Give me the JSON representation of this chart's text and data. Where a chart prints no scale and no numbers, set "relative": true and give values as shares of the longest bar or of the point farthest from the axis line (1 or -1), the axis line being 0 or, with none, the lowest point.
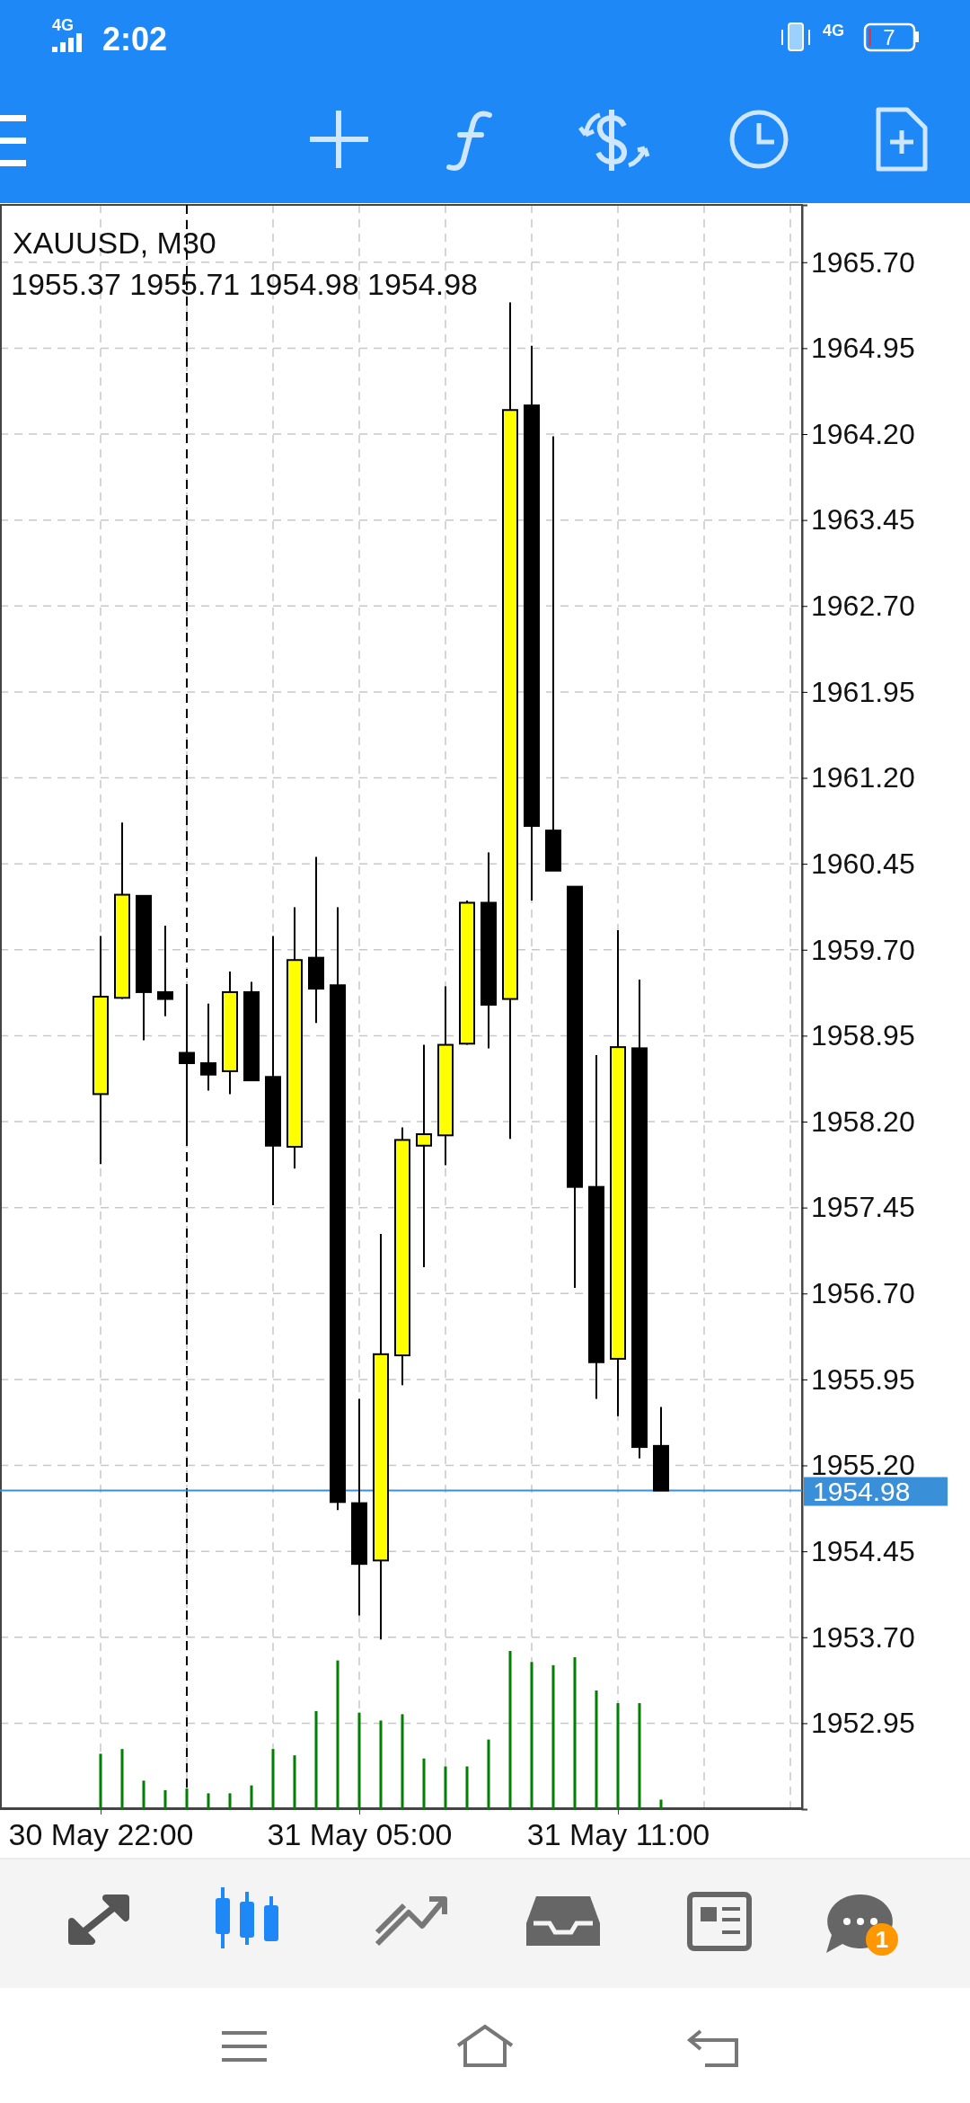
{
  "chart_data": [
    {
      "type": "candlestick",
      "title": "XAUUSD, M30",
      "subtitle": "1955.37 1955.71 1954.98 1954.98",
      "categories": [
        "30 May 22:00",
        null,
        null,
        null,
        null,
        null,
        null,
        null,
        null,
        null,
        null,
        null,
        "31 May 05:00",
        null,
        null,
        null,
        null,
        null,
        null,
        null,
        null,
        null,
        null,
        null,
        "31 May 11:00",
        null,
        null,
        null,
        null,
        null,
        null,
        null,
        null
      ],
      "ohlc": [
        [
          1958.44,
          1959.82,
          1957.83,
          1959.29
        ],
        [
          1959.28,
          1960.81,
          1959.27,
          1960.18
        ],
        [
          1960.17,
          1960.17,
          1958.91,
          1959.33
        ],
        [
          1959.33,
          1959.91,
          1959.12,
          1959.27
        ],
        [
          1958.8,
          1959.39,
          1958.0,
          1958.71
        ],
        [
          1958.71,
          1959.23,
          1958.47,
          1958.61
        ],
        [
          1958.64,
          1959.51,
          1958.44,
          1959.33
        ],
        [
          1959.33,
          1959.42,
          1958.56,
          1958.56
        ],
        [
          1958.59,
          1959.82,
          1957.47,
          1957.99
        ],
        [
          1957.98,
          1960.07,
          1957.79,
          1959.61
        ],
        [
          1959.63,
          1960.51,
          1959.06,
          1959.36
        ],
        [
          1959.39,
          1960.07,
          1954.81,
          1954.88
        ],
        [
          1954.87,
          1955.78,
          1953.89,
          1954.34
        ],
        [
          1954.37,
          1957.22,
          1953.68,
          1956.17
        ],
        [
          1956.16,
          1958.15,
          1955.9,
          1958.04
        ],
        [
          1957.99,
          1958.87,
          1956.93,
          1958.09
        ],
        [
          1958.08,
          1959.38,
          1957.82,
          1958.87
        ],
        [
          1958.88,
          1960.13,
          1958.87,
          1960.11
        ],
        [
          1960.11,
          1960.55,
          1958.84,
          1959.22
        ],
        [
          1959.27,
          1965.35,
          1958.05,
          1964.41
        ],
        [
          1964.45,
          1964.97,
          1960.13,
          1960.78
        ],
        [
          1960.74,
          1964.18,
          1960.39,
          1960.39
        ],
        [
          1960.25,
          1960.25,
          1956.75,
          1957.63
        ],
        [
          1957.63,
          1958.78,
          1955.78,
          1956.1
        ],
        [
          1956.13,
          1959.87,
          1955.63,
          1958.85
        ],
        [
          1958.84,
          1959.44,
          1955.26,
          1955.36
        ],
        [
          1955.37,
          1955.71,
          1954.98,
          1954.98
        ],
        null,
        null,
        null,
        null,
        null,
        null
      ],
      "colors": [
        "#ffff00",
        "#ffff00",
        "#000000",
        "#000000",
        "#000000",
        "#000000",
        "#ffff00",
        "#000000",
        "#000000",
        "#ffff00",
        "#000000",
        "#000000",
        "#000000",
        "#ffff00",
        "#ffff00",
        "#ffff00",
        "#ffff00",
        "#ffff00",
        "#000000",
        "#ffff00",
        "#000000",
        "#000000",
        "#000000",
        "#000000",
        "#ffff00",
        "#000000",
        "#000000",
        null,
        null,
        null,
        null,
        null,
        null
      ],
      "ylim": [
        1952.2,
        1966.2
      ],
      "yticks": [
        {
          "value": 1965.7,
          "label": "1965.70"
        },
        {
          "value": 1964.95,
          "label": "1964.95"
        },
        {
          "value": 1964.2,
          "label": "1964.20"
        },
        {
          "value": 1963.45,
          "label": "1963.45"
        },
        {
          "value": 1962.7,
          "label": "1962.70"
        },
        {
          "value": 1961.95,
          "label": "1961.95"
        },
        {
          "value": 1961.2,
          "label": "1961.20"
        },
        {
          "value": 1960.45,
          "label": "1960.45"
        },
        {
          "value": 1959.7,
          "label": "1959.70"
        },
        {
          "value": 1958.95,
          "label": "1958.95"
        },
        {
          "value": 1958.2,
          "label": "1958.20"
        },
        {
          "value": 1957.45,
          "label": "1957.45"
        },
        {
          "value": 1956.7,
          "label": "1956.70"
        },
        {
          "value": 1955.95,
          "label": "1955.95"
        },
        {
          "value": 1955.2,
          "label": "1955.20"
        },
        {
          "value": 1954.45,
          "label": "1954.45"
        },
        {
          "value": 1953.7,
          "label": "1953.70"
        },
        {
          "value": 1952.95,
          "label": "1952.95"
        }
      ],
      "grid": true,
      "ref_lines": [
        {
          "axis": "y",
          "value": 1954.98,
          "label": "1954.98",
          "color": "#3a8fd9"
        }
      ],
      "annotations": [
        "2:02",
        "4G",
        "4G",
        "7",
        "1"
      ]
    },
    {
      "type": "bar",
      "relative": true,
      "color": "#007f00",
      "categories": [
        null,
        null,
        null,
        null,
        null,
        null,
        null,
        null,
        null,
        null,
        null,
        null,
        null,
        null,
        null,
        null,
        null,
        null,
        null,
        null,
        null,
        null,
        null,
        null,
        null,
        null,
        null,
        null,
        null,
        null,
        null,
        null,
        null
      ],
      "values": [
        0.35,
        0.38,
        0.18,
        0.12,
        0.13,
        0.1,
        0.1,
        0.15,
        0.38,
        0.34,
        0.62,
        0.94,
        0.61,
        0.56,
        0.6,
        0.32,
        0.27,
        0.27,
        0.44,
        1,
        0.93,
        0.91,
        0.96,
        0.75,
        0.67,
        0.67,
        0.06,
        null,
        null,
        null,
        null,
        null,
        null
      ]
    }
  ]
}
